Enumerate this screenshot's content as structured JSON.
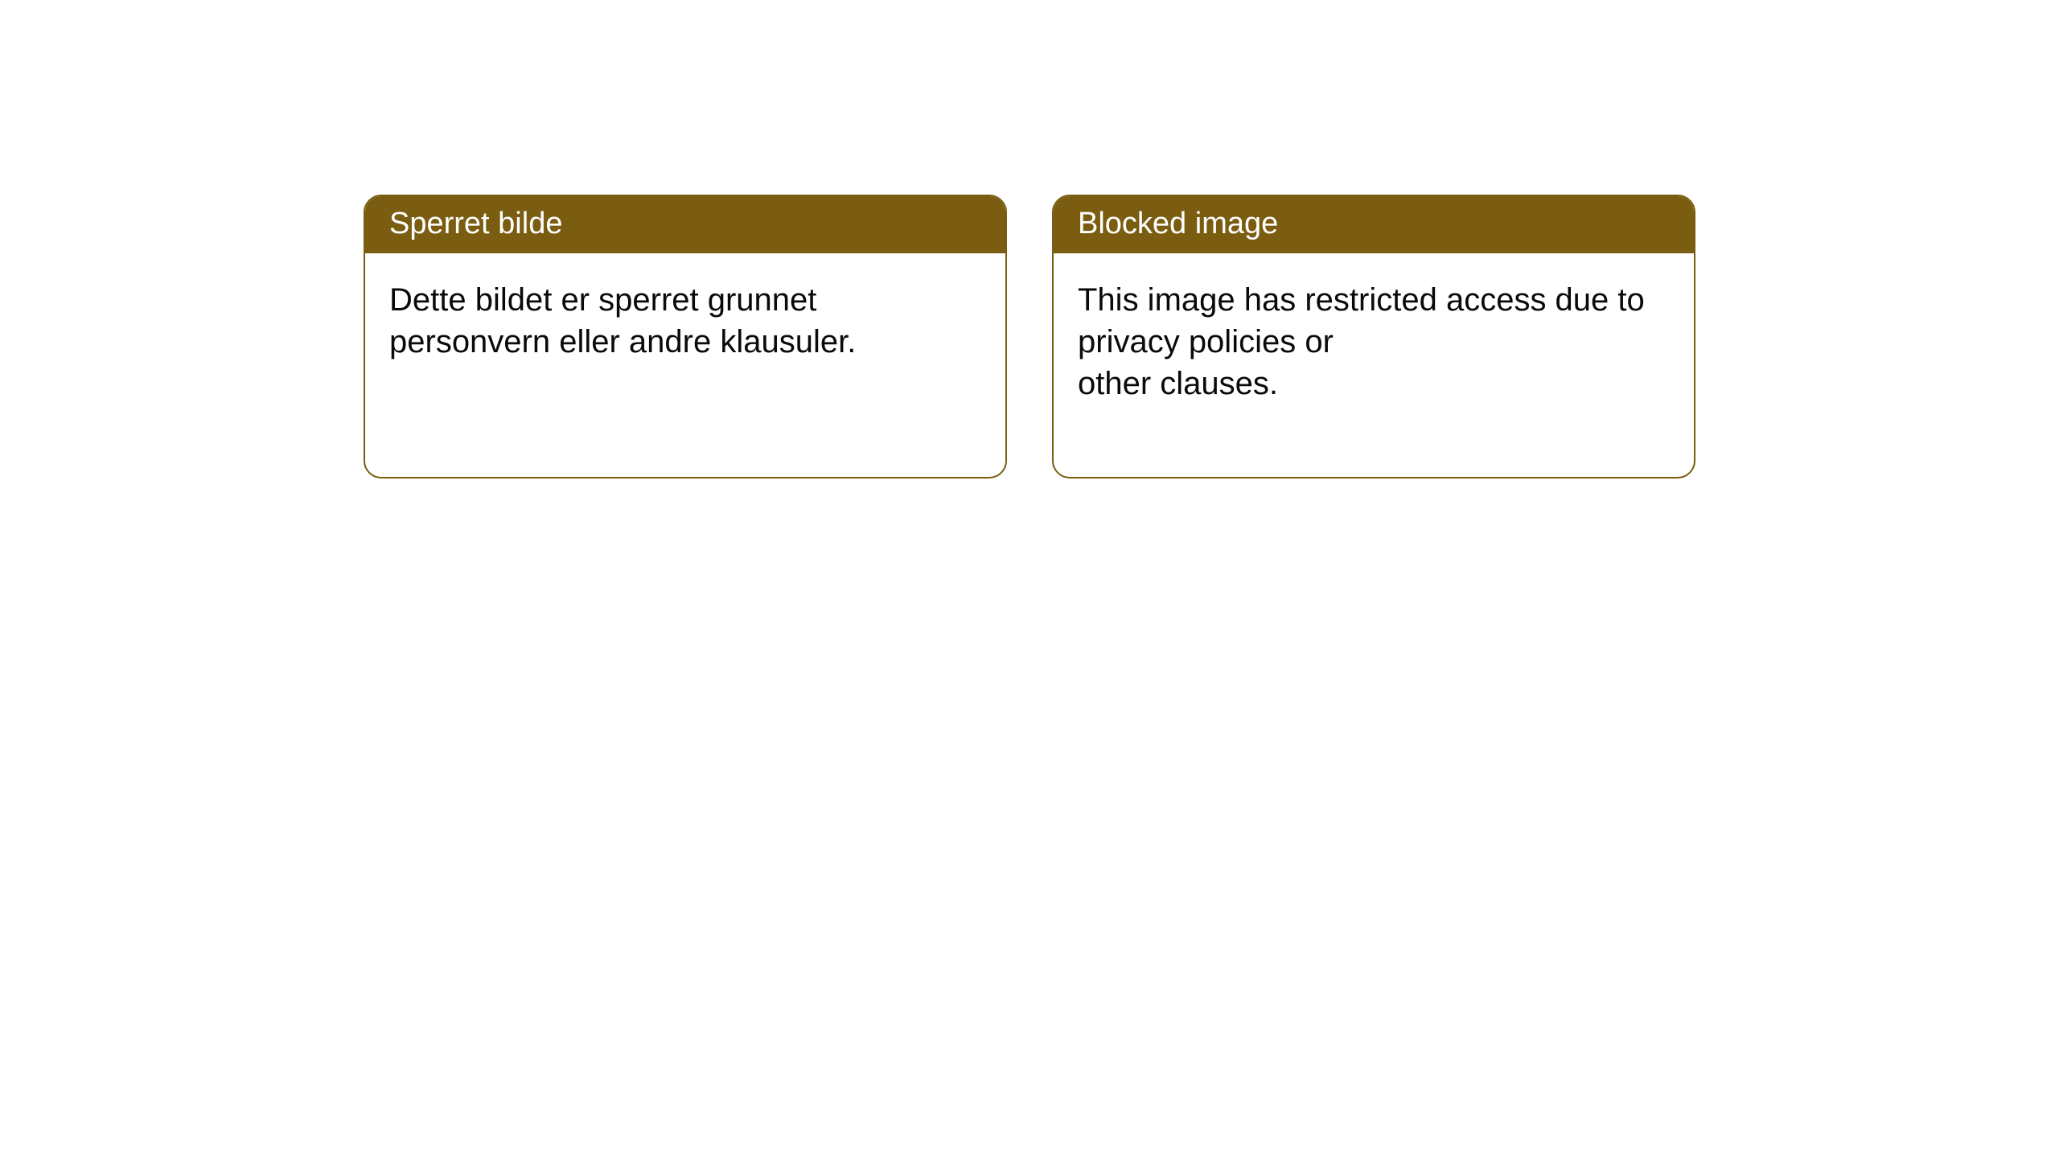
{
  "colors": {
    "background": "#ffffff",
    "card_border": "#7a5d10",
    "title_bg": "#7a5d10",
    "title_text": "#ffffff",
    "body_text": "#0a0a0a"
  },
  "cards": [
    {
      "title": "Sperret bilde",
      "body": "Dette bildet er sperret grunnet personvern eller andre klausuler."
    },
    {
      "title": "Blocked image",
      "body": "This image has restricted access due to privacy policies or\nother clauses."
    }
  ]
}
